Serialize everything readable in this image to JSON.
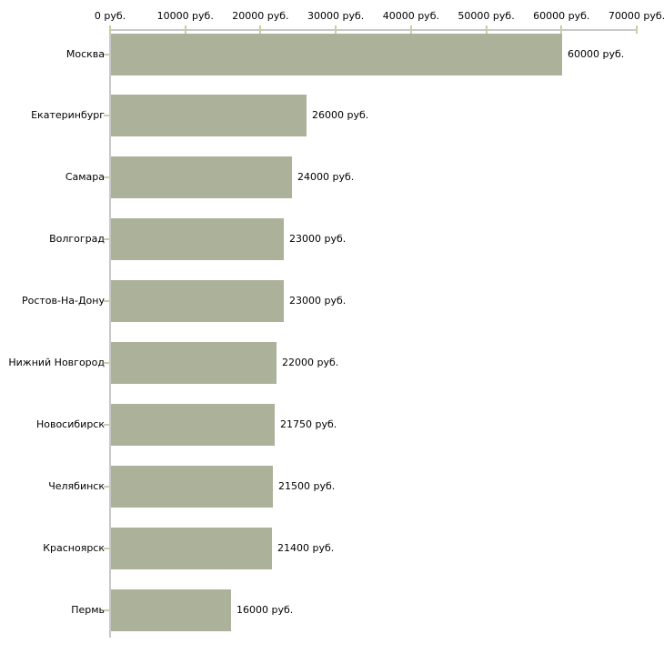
{
  "chart_data": {
    "type": "bar",
    "orientation": "horizontal",
    "title": "",
    "xlabel": "",
    "ylabel": "",
    "grid": false,
    "legend": false,
    "x_axis": {
      "position": "top",
      "min": 0,
      "max": 70000,
      "ticks": [
        0,
        10000,
        20000,
        30000,
        40000,
        50000,
        60000,
        70000
      ],
      "tick_labels": [
        "0 руб.",
        "10000 руб.",
        "20000 руб.",
        "30000 руб.",
        "40000 руб.",
        "50000 руб.",
        "60000 руб.",
        "70000 руб."
      ]
    },
    "categories": [
      "Москва",
      "Екатеринбург",
      "Самара",
      "Волгоград",
      "Ростов-На-Дону",
      "Нижний Новгород",
      "Новосибирск",
      "Челябинск",
      "Красноярск",
      "Пермь"
    ],
    "values": [
      60000,
      26000,
      24000,
      23000,
      23000,
      22000,
      21750,
      21500,
      21400,
      16000
    ],
    "value_labels": [
      "60000 руб.",
      "26000 руб.",
      "24000 руб.",
      "23000 руб.",
      "23000 руб.",
      "22000 руб.",
      "21750 руб.",
      "21500 руб.",
      "21400 руб.",
      "16000 руб."
    ]
  },
  "colors": {
    "bar": "#acb19a",
    "axis_line": "#c8c8c8",
    "tick": "#cdcda0",
    "text": "#000000",
    "background": "#ffffff"
  }
}
